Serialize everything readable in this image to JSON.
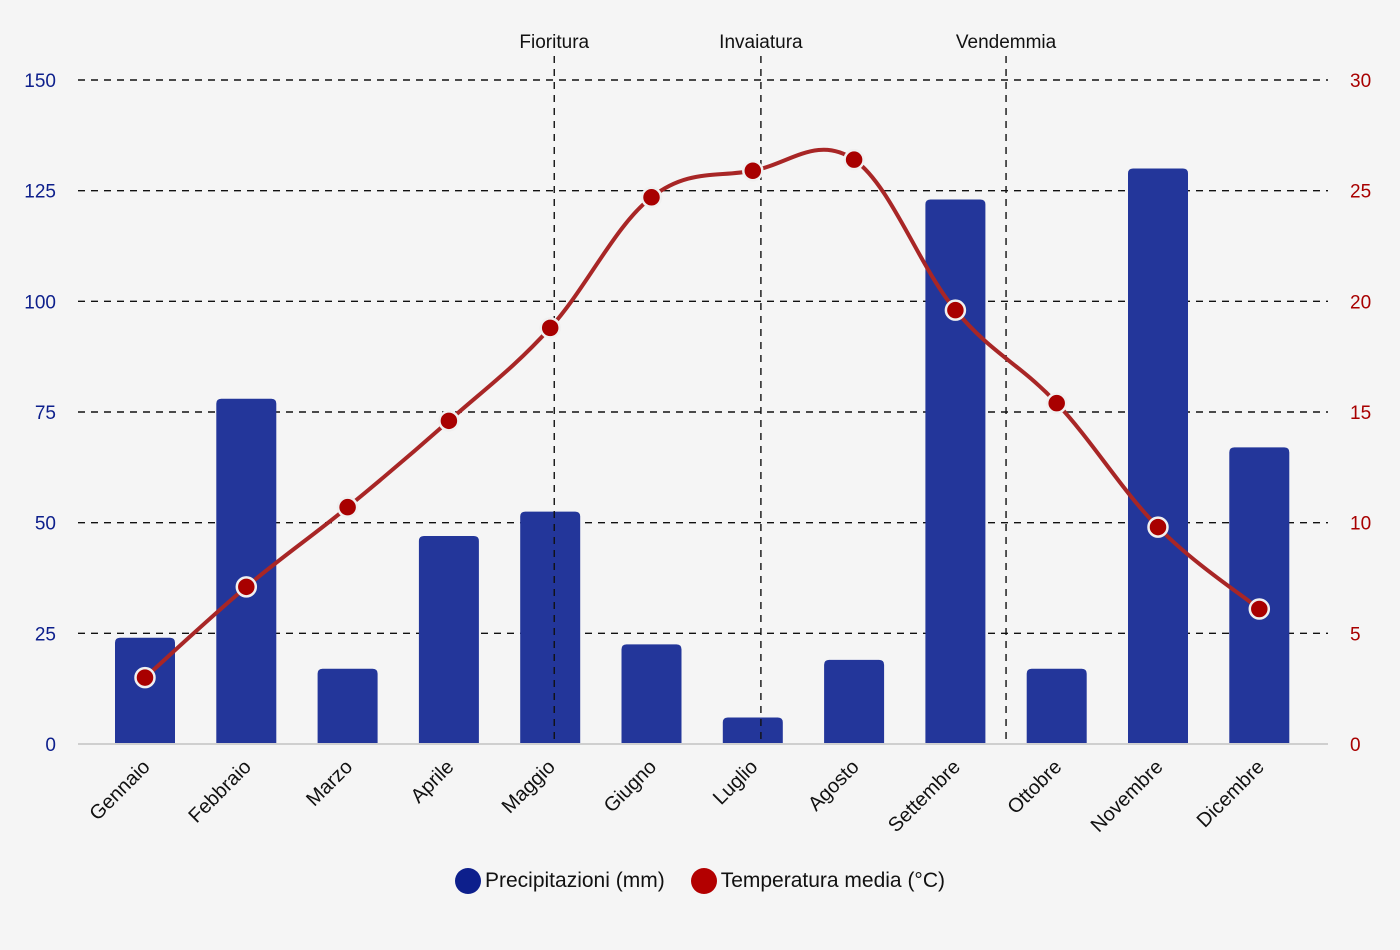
{
  "chart_data": {
    "type": "bar+line",
    "categories": [
      "Gennaio",
      "Febbraio",
      "Marzo",
      "Aprile",
      "Maggio",
      "Giugno",
      "Luglio",
      "Agosto",
      "Settembre",
      "Ottobre",
      "Novembre",
      "Dicembre"
    ],
    "series": [
      {
        "name": "Precipitazioni (mm)",
        "type": "bar",
        "axis": "left",
        "color": "#23369a",
        "legend_color": "#0d1f8c",
        "values": [
          24,
          78,
          17,
          47,
          52.5,
          22.5,
          6,
          19,
          123,
          17,
          130,
          67
        ]
      },
      {
        "name": "Temperatura media (°C)",
        "type": "line",
        "axis": "right",
        "color": "#a82626",
        "marker_color": "#a80000",
        "legend_color": "#b30000",
        "values": [
          3.0,
          7.1,
          10.7,
          14.6,
          18.8,
          24.7,
          25.9,
          26.4,
          19.6,
          15.4,
          9.8,
          6.1
        ]
      }
    ],
    "y_left": {
      "min": 0,
      "max": 150,
      "ticks": [
        "0",
        "25",
        "50",
        "75",
        "100",
        "125",
        "150"
      ],
      "color": "#0d1f8c"
    },
    "y_right": {
      "min": 0,
      "max": 30,
      "ticks": [
        "0",
        "5",
        "10",
        "15",
        "20",
        "25",
        "30"
      ],
      "color": "#a80000"
    },
    "annotations": [
      {
        "label": "Fioritura",
        "position": 4.04
      },
      {
        "label": "Invaiatura",
        "position": 6.08
      },
      {
        "label": "Vendemmia",
        "position": 8.5
      }
    ],
    "grid": "horizontal-dashed",
    "legend_position": "bottom-center"
  }
}
